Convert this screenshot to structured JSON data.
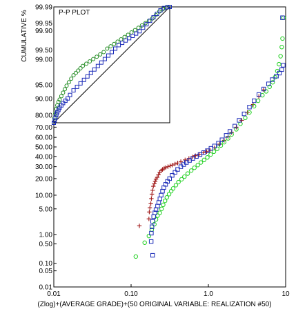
{
  "chart_data": [
    {
      "type": "scatter",
      "name": "main",
      "ylabel": "CUMULATIVE %",
      "xlabel": "(Zlog)+(AVERAGE GRADE)+(50 ORIGINAL VARIABLE: REALIZATION #50)",
      "x_scale": "log",
      "y_scale": "probability",
      "xlim": [
        0.01,
        10
      ],
      "ylim": [
        0.01,
        99.99
      ],
      "x_ticks": [
        0.01,
        0.1,
        1.0,
        10
      ],
      "x_tick_labels": [
        "0.01",
        "0.10",
        "1.0",
        "10"
      ],
      "y_ticks": [
        0.01,
        0.05,
        0.1,
        0.5,
        1,
        5,
        10,
        20,
        30,
        40,
        50,
        60,
        70,
        80,
        90,
        95,
        99,
        99.5,
        99.9,
        99.95,
        99.99
      ],
      "y_tick_labels": [
        "0.01",
        "0.05",
        "0.10",
        "0.50",
        "1.00",
        "5.00",
        "10.00",
        "20.00",
        "30.00",
        "40.00",
        "50.00",
        "60.00",
        "70.00",
        "80.00",
        "90.00",
        "95.00",
        "99.00",
        "99.50",
        "99.90",
        "99.95",
        "99.99"
      ],
      "series": [
        {
          "marker": "plus",
          "color": "#a01818",
          "points": [
            [
              0.128,
              1.8
            ],
            [
              0.17,
              2.8
            ],
            [
              0.172,
              4.2
            ],
            [
              0.175,
              5.3
            ],
            [
              0.18,
              6.6
            ],
            [
              0.183,
              8.5
            ],
            [
              0.186,
              10.5
            ],
            [
              0.19,
              12.5
            ],
            [
              0.194,
              14.8
            ],
            [
              0.2,
              16.5
            ],
            [
              0.205,
              18.0
            ],
            [
              0.21,
              19.6
            ],
            [
              0.218,
              21.0
            ],
            [
              0.226,
              23.0
            ],
            [
              0.235,
              25.0
            ],
            [
              0.245,
              26.5
            ],
            [
              0.255,
              27.5
            ],
            [
              0.268,
              28.5
            ],
            [
              0.28,
              29.2
            ],
            [
              0.3,
              30.0
            ],
            [
              0.32,
              30.8
            ],
            [
              0.34,
              31.5
            ],
            [
              0.37,
              32.5
            ],
            [
              0.4,
              33.5
            ],
            [
              0.44,
              34.8
            ],
            [
              0.5,
              36.5
            ],
            [
              0.56,
              38.0
            ],
            [
              0.62,
              39.5
            ],
            [
              0.68,
              40.8
            ],
            [
              0.76,
              42.3
            ],
            [
              0.86,
              44.0
            ],
            [
              0.95,
              45.0
            ],
            [
              1.05,
              46.5
            ],
            [
              1.2,
              49.0
            ],
            [
              1.4,
              53.0
            ],
            [
              1.6,
              57.0
            ],
            [
              1.8,
              61.0
            ],
            [
              2.0,
              65.0
            ],
            [
              2.3,
              70.0
            ],
            [
              2.7,
              76.0
            ],
            [
              3.2,
              82.0
            ],
            [
              3.8,
              87.0
            ],
            [
              4.5,
              91.0
            ],
            [
              5.2,
              93.5
            ]
          ]
        },
        {
          "marker": "circle",
          "color": "#20d020",
          "points": [
            [
              0.115,
              0.18
            ],
            [
              0.15,
              0.55
            ],
            [
              0.17,
              0.9
            ],
            [
              0.185,
              1.4
            ],
            [
              0.2,
              2.0
            ],
            [
              0.21,
              2.7
            ],
            [
              0.22,
              3.4
            ],
            [
              0.235,
              4.0
            ],
            [
              0.248,
              5.0
            ],
            [
              0.26,
              6.2
            ],
            [
              0.275,
              7.6
            ],
            [
              0.29,
              9.0
            ],
            [
              0.31,
              10.5
            ],
            [
              0.33,
              12.0
            ],
            [
              0.35,
              13.5
            ],
            [
              0.38,
              15.5
            ],
            [
              0.41,
              17.5
            ],
            [
              0.45,
              19.5
            ],
            [
              0.49,
              21.5
            ],
            [
              0.54,
              24.0
            ],
            [
              0.6,
              26.5
            ],
            [
              0.66,
              29.0
            ],
            [
              0.73,
              31.5
            ],
            [
              0.8,
              34.0
            ],
            [
              0.88,
              36.5
            ],
            [
              0.97,
              39.0
            ],
            [
              1.07,
              42.0
            ],
            [
              1.18,
              45.0
            ],
            [
              1.3,
              48.0
            ],
            [
              1.45,
              51.5
            ],
            [
              1.6,
              55.0
            ],
            [
              1.8,
              59.0
            ],
            [
              2.0,
              63.0
            ],
            [
              2.3,
              68.0
            ],
            [
              2.6,
              73.0
            ],
            [
              3.0,
              78.0
            ],
            [
              3.4,
              82.0
            ],
            [
              3.9,
              86.0
            ],
            [
              4.4,
              89.0
            ],
            [
              5.0,
              91.5
            ],
            [
              5.6,
              93.0
            ],
            [
              6.2,
              94.5
            ],
            [
              6.8,
              95.7
            ],
            [
              7.3,
              96.8
            ],
            [
              7.8,
              97.8
            ],
            [
              8.2,
              98.6
            ],
            [
              8.6,
              99.2
            ],
            [
              8.9,
              99.6
            ],
            [
              9.1,
              99.8
            ],
            [
              9.4,
              99.97
            ]
          ]
        },
        {
          "marker": "square",
          "color": "#1b2bb8",
          "points": [
            [
              0.19,
              0.2
            ],
            [
              0.182,
              0.6
            ],
            [
              0.183,
              1.1
            ],
            [
              0.186,
              1.7
            ],
            [
              0.19,
              2.4
            ],
            [
              0.196,
              3.2
            ],
            [
              0.203,
              4.0
            ],
            [
              0.21,
              4.8
            ],
            [
              0.22,
              5.8
            ],
            [
              0.228,
              7.0
            ],
            [
              0.236,
              8.4
            ],
            [
              0.245,
              10.0
            ],
            [
              0.255,
              12.0
            ],
            [
              0.265,
              14.0
            ],
            [
              0.28,
              16.0
            ],
            [
              0.296,
              18.0
            ],
            [
              0.315,
              20.0
            ],
            [
              0.34,
              22.5
            ],
            [
              0.37,
              25.0
            ],
            [
              0.4,
              27.5
            ],
            [
              0.44,
              30.0
            ],
            [
              0.48,
              32.0
            ],
            [
              0.52,
              34.0
            ],
            [
              0.57,
              36.0
            ],
            [
              0.63,
              38.0
            ],
            [
              0.7,
              40.0
            ],
            [
              0.78,
              42.0
            ],
            [
              0.87,
              44.0
            ],
            [
              0.97,
              46.0
            ],
            [
              1.08,
              48.5
            ],
            [
              1.2,
              51.0
            ],
            [
              1.35,
              54.0
            ],
            [
              1.5,
              57.5
            ],
            [
              1.7,
              62.0
            ],
            [
              1.9,
              66.0
            ],
            [
              2.2,
              71.0
            ],
            [
              2.5,
              76.0
            ],
            [
              2.9,
              81.0
            ],
            [
              3.4,
              85.5
            ],
            [
              3.9,
              89.0
            ],
            [
              4.5,
              91.8
            ],
            [
              5.2,
              93.8
            ],
            [
              6.0,
              95.3
            ],
            [
              6.7,
              96.3
            ],
            [
              7.6,
              97.0
            ],
            [
              8.3,
              97.5
            ],
            [
              8.9,
              98.0
            ],
            [
              9.3,
              98.5
            ],
            [
              9.1,
              99.97
            ]
          ]
        }
      ]
    },
    {
      "type": "scatter",
      "name": "inset",
      "title": "P-P PLOT",
      "xlim": [
        0,
        1
      ],
      "ylim": [
        0,
        1
      ],
      "grid": false,
      "series": [
        {
          "marker": "circle",
          "color": "#1f8a1f",
          "points": [
            [
              0.0,
              0.0
            ],
            [
              0.005,
              0.04
            ],
            [
              0.012,
              0.08
            ],
            [
              0.02,
              0.12
            ],
            [
              0.03,
              0.15
            ],
            [
              0.04,
              0.18
            ],
            [
              0.05,
              0.2
            ],
            [
              0.065,
              0.23
            ],
            [
              0.08,
              0.26
            ],
            [
              0.095,
              0.29
            ],
            [
              0.11,
              0.32
            ],
            [
              0.13,
              0.35
            ],
            [
              0.15,
              0.38
            ],
            [
              0.17,
              0.41
            ],
            [
              0.19,
              0.43
            ],
            [
              0.21,
              0.45
            ],
            [
              0.23,
              0.47
            ],
            [
              0.25,
              0.49
            ],
            [
              0.28,
              0.51
            ],
            [
              0.31,
              0.53
            ],
            [
              0.34,
              0.55
            ],
            [
              0.37,
              0.57
            ],
            [
              0.4,
              0.59
            ],
            [
              0.43,
              0.61
            ],
            [
              0.46,
              0.64
            ],
            [
              0.49,
              0.66
            ],
            [
              0.52,
              0.68
            ],
            [
              0.55,
              0.7
            ],
            [
              0.58,
              0.72
            ],
            [
              0.61,
              0.74
            ],
            [
              0.64,
              0.76
            ],
            [
              0.67,
              0.78
            ],
            [
              0.7,
              0.8
            ],
            [
              0.73,
              0.82
            ],
            [
              0.76,
              0.84
            ],
            [
              0.79,
              0.86
            ],
            [
              0.82,
              0.88
            ],
            [
              0.85,
              0.9
            ],
            [
              0.88,
              0.93
            ],
            [
              0.91,
              0.96
            ],
            [
              0.94,
              0.98
            ],
            [
              0.97,
              0.995
            ],
            [
              1.0,
              1.0
            ]
          ]
        },
        {
          "marker": "square",
          "color": "#1b2bb8",
          "points": [
            [
              0.0,
              0.0
            ],
            [
              0.008,
              0.02
            ],
            [
              0.015,
              0.045
            ],
            [
              0.022,
              0.07
            ],
            [
              0.03,
              0.09
            ],
            [
              0.04,
              0.11
            ],
            [
              0.05,
              0.13
            ],
            [
              0.065,
              0.15
            ],
            [
              0.08,
              0.17
            ],
            [
              0.1,
              0.19
            ],
            [
              0.12,
              0.21
            ],
            [
              0.14,
              0.24
            ],
            [
              0.17,
              0.28
            ],
            [
              0.2,
              0.31
            ],
            [
              0.23,
              0.34
            ],
            [
              0.26,
              0.37
            ],
            [
              0.29,
              0.4
            ],
            [
              0.32,
              0.43
            ],
            [
              0.35,
              0.46
            ],
            [
              0.38,
              0.49
            ],
            [
              0.41,
              0.52
            ],
            [
              0.44,
              0.55
            ],
            [
              0.47,
              0.58
            ],
            [
              0.5,
              0.61
            ],
            [
              0.53,
              0.64
            ],
            [
              0.56,
              0.67
            ],
            [
              0.59,
              0.69
            ],
            [
              0.62,
              0.71
            ],
            [
              0.65,
              0.73
            ],
            [
              0.68,
              0.75
            ],
            [
              0.71,
              0.77
            ],
            [
              0.74,
              0.79
            ],
            [
              0.77,
              0.82
            ],
            [
              0.8,
              0.85
            ],
            [
              0.83,
              0.88
            ],
            [
              0.86,
              0.91
            ],
            [
              0.89,
              0.94
            ],
            [
              0.92,
              0.97
            ],
            [
              0.95,
              0.99
            ],
            [
              0.98,
              0.998
            ],
            [
              1.0,
              1.0
            ]
          ]
        }
      ],
      "reference_line": [
        [
          0,
          0
        ],
        [
          1,
          1
        ]
      ]
    }
  ]
}
